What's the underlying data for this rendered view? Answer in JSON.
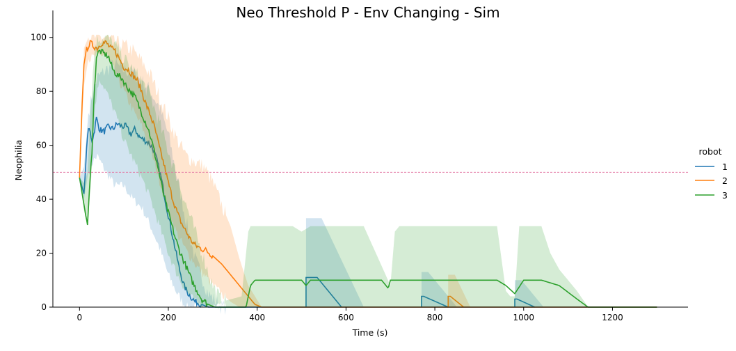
{
  "chart_data": {
    "type": "line",
    "title": "Neo Threshold P - Env Changing - Sim",
    "xlabel": "Time (s)",
    "ylabel": "Neophilia",
    "xlim": [
      -60,
      1370
    ],
    "ylim": [
      0,
      110
    ],
    "x_ticks": [
      0,
      200,
      400,
      600,
      800,
      1000,
      1200
    ],
    "y_ticks": [
      0,
      20,
      40,
      60,
      80,
      100
    ],
    "grid": false,
    "legend_title": "robot",
    "legend_position": "right",
    "threshold_line": {
      "y": 50,
      "color": "#e377a2",
      "style": "dashed"
    },
    "series": [
      {
        "name": "1",
        "color": "#1f77b4",
        "mean": [
          [
            0,
            48
          ],
          [
            10,
            42
          ],
          [
            15,
            55
          ],
          [
            18,
            64
          ],
          [
            22,
            66
          ],
          [
            28,
            62
          ],
          [
            32,
            64
          ],
          [
            38,
            70
          ],
          [
            45,
            66
          ],
          [
            55,
            65
          ],
          [
            65,
            67
          ],
          [
            75,
            66
          ],
          [
            85,
            68
          ],
          [
            95,
            67
          ],
          [
            105,
            67
          ],
          [
            115,
            64
          ],
          [
            125,
            66
          ],
          [
            135,
            63
          ],
          [
            145,
            62
          ],
          [
            155,
            61
          ],
          [
            165,
            59
          ],
          [
            175,
            54
          ],
          [
            185,
            47
          ],
          [
            195,
            38
          ],
          [
            205,
            30
          ],
          [
            215,
            22
          ],
          [
            225,
            14
          ],
          [
            235,
            8
          ],
          [
            245,
            5
          ],
          [
            260,
            2
          ],
          [
            275,
            1
          ],
          [
            290,
            0
          ],
          [
            1300,
            0
          ]
        ],
        "band": [
          [
            0,
            48,
            48
          ],
          [
            10,
            40,
            52
          ],
          [
            15,
            45,
            62
          ],
          [
            20,
            50,
            72
          ],
          [
            30,
            54,
            80
          ],
          [
            40,
            56,
            85
          ],
          [
            60,
            50,
            88
          ],
          [
            80,
            45,
            90
          ],
          [
            100,
            45,
            88
          ],
          [
            120,
            40,
            87
          ],
          [
            140,
            37,
            84
          ],
          [
            160,
            30,
            80
          ],
          [
            180,
            22,
            74
          ],
          [
            200,
            12,
            64
          ],
          [
            220,
            5,
            48
          ],
          [
            240,
            0,
            32
          ],
          [
            260,
            0,
            18
          ],
          [
            290,
            0,
            5
          ],
          [
            320,
            0,
            0
          ],
          [
            1300,
            0,
            0
          ]
        ],
        "events": [
          {
            "peak": 11,
            "peak_upper": 33,
            "start": 510,
            "flat_end": 535,
            "end": 590,
            "band_end": 640
          },
          {
            "peak": 4,
            "peak_upper": 13,
            "start": 770,
            "flat_end": 775,
            "end": 830,
            "band_end": 850
          },
          {
            "peak": 3,
            "peak_upper": 10,
            "start": 980,
            "flat_end": 985,
            "end": 1025,
            "band_end": 1045
          }
        ]
      },
      {
        "name": "2",
        "color": "#ff7f0e",
        "mean": [
          [
            0,
            48
          ],
          [
            5,
            72
          ],
          [
            10,
            90
          ],
          [
            15,
            95
          ],
          [
            20,
            97
          ],
          [
            25,
            98
          ],
          [
            30,
            97
          ],
          [
            40,
            96
          ],
          [
            50,
            98
          ],
          [
            60,
            98
          ],
          [
            70,
            96
          ],
          [
            80,
            95
          ],
          [
            90,
            92
          ],
          [
            100,
            89
          ],
          [
            110,
            88
          ],
          [
            120,
            86
          ],
          [
            130,
            84
          ],
          [
            140,
            80
          ],
          [
            150,
            75
          ],
          [
            160,
            71
          ],
          [
            170,
            66
          ],
          [
            180,
            59
          ],
          [
            190,
            53
          ],
          [
            200,
            46
          ],
          [
            210,
            40
          ],
          [
            220,
            35
          ],
          [
            230,
            31
          ],
          [
            240,
            28
          ],
          [
            250,
            25
          ],
          [
            260,
            23
          ],
          [
            270,
            22
          ],
          [
            285,
            21
          ],
          [
            300,
            19
          ],
          [
            320,
            16
          ],
          [
            340,
            12
          ],
          [
            360,
            8
          ],
          [
            380,
            4
          ],
          [
            395,
            1
          ],
          [
            410,
            0
          ],
          [
            1300,
            0
          ]
        ],
        "band": [
          [
            0,
            48,
            48
          ],
          [
            10,
            82,
            96
          ],
          [
            20,
            92,
            100
          ],
          [
            40,
            93,
            100
          ],
          [
            60,
            94,
            100
          ],
          [
            80,
            87,
            98
          ],
          [
            100,
            80,
            97
          ],
          [
            120,
            73,
            95
          ],
          [
            140,
            67,
            91
          ],
          [
            160,
            58,
            86
          ],
          [
            180,
            47,
            78
          ],
          [
            200,
            36,
            70
          ],
          [
            220,
            27,
            62
          ],
          [
            240,
            21,
            56
          ],
          [
            260,
            16,
            54
          ],
          [
            280,
            12,
            52
          ],
          [
            300,
            8,
            46
          ],
          [
            320,
            5,
            38
          ],
          [
            340,
            2,
            30
          ],
          [
            360,
            0,
            18
          ],
          [
            380,
            0,
            8
          ],
          [
            410,
            0,
            0
          ],
          [
            1300,
            0,
            0
          ]
        ],
        "events": [
          {
            "peak": 4,
            "peak_upper": 12,
            "start": 830,
            "flat_end": 835,
            "end": 865,
            "band_end": 880
          }
        ]
      },
      {
        "name": "3",
        "color": "#2ca02c",
        "mean": [
          [
            0,
            48
          ],
          [
            8,
            40
          ],
          [
            14,
            34
          ],
          [
            18,
            31
          ],
          [
            22,
            42
          ],
          [
            28,
            58
          ],
          [
            32,
            75
          ],
          [
            38,
            93
          ],
          [
            45,
            95
          ],
          [
            55,
            94
          ],
          [
            65,
            93
          ],
          [
            75,
            88
          ],
          [
            85,
            86
          ],
          [
            95,
            85
          ],
          [
            105,
            82
          ],
          [
            115,
            80
          ],
          [
            125,
            78
          ],
          [
            135,
            74
          ],
          [
            145,
            70
          ],
          [
            155,
            66
          ],
          [
            165,
            60
          ],
          [
            175,
            53
          ],
          [
            185,
            45
          ],
          [
            195,
            38
          ],
          [
            205,
            32
          ],
          [
            215,
            26
          ],
          [
            225,
            21
          ],
          [
            235,
            17
          ],
          [
            245,
            13
          ],
          [
            255,
            9
          ],
          [
            265,
            6
          ],
          [
            275,
            3
          ],
          [
            290,
            1
          ],
          [
            305,
            0
          ],
          [
            375,
            0
          ],
          [
            385,
            8
          ],
          [
            395,
            10
          ],
          [
            420,
            10
          ],
          [
            500,
            10
          ],
          [
            510,
            8
          ],
          [
            520,
            10
          ],
          [
            600,
            10
          ],
          [
            630,
            10
          ],
          [
            680,
            10
          ],
          [
            695,
            7
          ],
          [
            700,
            10
          ],
          [
            780,
            10
          ],
          [
            875,
            10
          ],
          [
            940,
            10
          ],
          [
            960,
            8
          ],
          [
            980,
            5
          ],
          [
            1000,
            10
          ],
          [
            1040,
            10
          ],
          [
            1060,
            9
          ],
          [
            1080,
            8
          ],
          [
            1120,
            3
          ],
          [
            1145,
            0
          ],
          [
            1300,
            0
          ]
        ],
        "band": [
          [
            0,
            48,
            48
          ],
          [
            10,
            36,
            46
          ],
          [
            18,
            30,
            50
          ],
          [
            25,
            45,
            75
          ],
          [
            35,
            75,
            98
          ],
          [
            45,
            85,
            100
          ],
          [
            60,
            80,
            100
          ],
          [
            80,
            72,
            97
          ],
          [
            100,
            62,
            92
          ],
          [
            120,
            55,
            88
          ],
          [
            140,
            48,
            84
          ],
          [
            160,
            40,
            78
          ],
          [
            180,
            30,
            68
          ],
          [
            200,
            20,
            58
          ],
          [
            220,
            12,
            48
          ],
          [
            240,
            6,
            38
          ],
          [
            260,
            2,
            28
          ],
          [
            280,
            0,
            18
          ],
          [
            300,
            0,
            8
          ],
          [
            320,
            0,
            2
          ],
          [
            365,
            0,
            4
          ],
          [
            380,
            0,
            28
          ],
          [
            385,
            0,
            30
          ],
          [
            480,
            0,
            30
          ],
          [
            500,
            0,
            28
          ],
          [
            520,
            0,
            30
          ],
          [
            640,
            0,
            30
          ],
          [
            700,
            0,
            8
          ],
          [
            710,
            0,
            28
          ],
          [
            720,
            0,
            30
          ],
          [
            820,
            0,
            30
          ],
          [
            860,
            0,
            30
          ],
          [
            940,
            0,
            30
          ],
          [
            950,
            0,
            18
          ],
          [
            960,
            0,
            6
          ],
          [
            970,
            0,
            4
          ],
          [
            980,
            0,
            4
          ],
          [
            990,
            0,
            30
          ],
          [
            1040,
            0,
            30
          ],
          [
            1060,
            0,
            20
          ],
          [
            1080,
            0,
            14
          ],
          [
            1120,
            0,
            6
          ],
          [
            1145,
            0,
            0
          ],
          [
            1300,
            0,
            0
          ]
        ],
        "events": []
      }
    ]
  },
  "legend": {
    "title": "robot",
    "items": [
      {
        "label": "1",
        "color": "#1f77b4"
      },
      {
        "label": "2",
        "color": "#ff7f0e"
      },
      {
        "label": "3",
        "color": "#2ca02c"
      }
    ]
  }
}
